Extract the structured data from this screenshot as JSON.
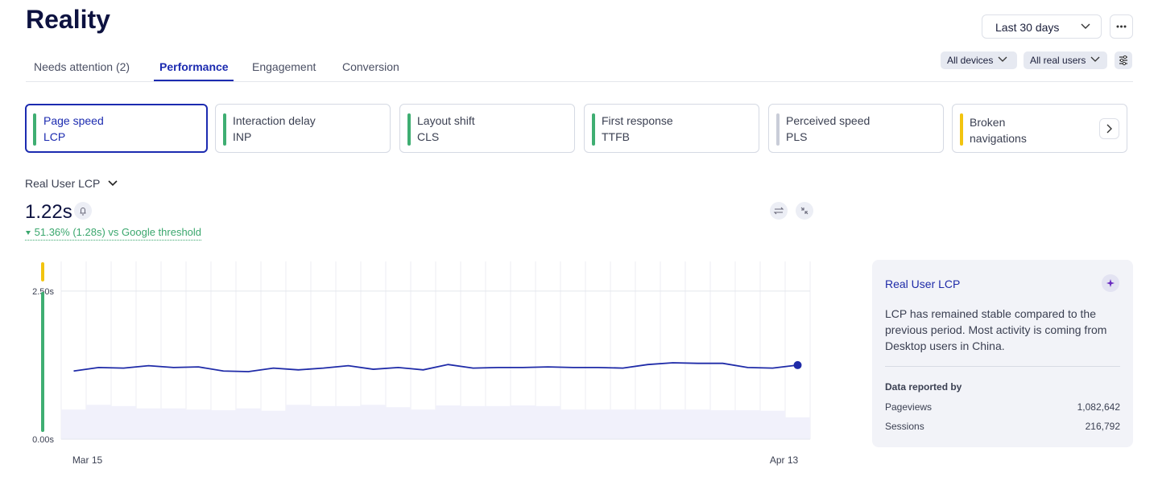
{
  "header": {
    "title": "Reality",
    "range": "Last 30 days",
    "tabs": [
      "Needs attention (2)",
      "Performance",
      "Engagement",
      "Conversion"
    ],
    "filters": [
      "All devices",
      "All real users"
    ]
  },
  "metrics": [
    {
      "name": "Page speed",
      "abbr": "LCP",
      "color": "#3fae72"
    },
    {
      "name": "Interaction delay",
      "abbr": "INP",
      "color": "#3fae72"
    },
    {
      "name": "Layout shift",
      "abbr": "CLS",
      "color": "#3fae72"
    },
    {
      "name": "First response",
      "abbr": "TTFB",
      "color": "#3fae72"
    },
    {
      "name": "Perceived speed",
      "abbr": "PLS",
      "color": "#c9cdd8"
    },
    {
      "name": "Broken navigations",
      "color": "#f2c40f"
    }
  ],
  "summary": {
    "label": "Real User LCP",
    "value": "1.22s",
    "delta": "51.36% (1.28s) vs Google threshold"
  },
  "chart_data": {
    "type": "line",
    "categories": [
      "Mar 15",
      null,
      null,
      null,
      null,
      null,
      null,
      null,
      null,
      null,
      null,
      null,
      null,
      null,
      null,
      null,
      null,
      null,
      null,
      null,
      null,
      null,
      null,
      null,
      null,
      null,
      null,
      null,
      null,
      "Apr 13"
    ],
    "series": [
      {
        "color": "#1f2ba8",
        "values": [
          1.15,
          1.21,
          1.2,
          1.24,
          1.21,
          1.22,
          1.15,
          1.14,
          1.2,
          1.17,
          1.2,
          1.24,
          1.18,
          1.21,
          1.17,
          1.26,
          1.2,
          1.21,
          1.21,
          1.22,
          1.21,
          1.21,
          1.2,
          1.26,
          1.29,
          1.28,
          1.28,
          1.21,
          1.2,
          1.25
        ]
      }
    ],
    "volume": {
      "color": "#f1f1fb",
      "values": [
        0.5,
        0.58,
        0.56,
        0.52,
        0.52,
        0.5,
        0.49,
        0.52,
        0.48,
        0.58,
        0.56,
        0.56,
        0.58,
        0.54,
        0.5,
        0.57,
        0.56,
        0.56,
        0.57,
        0.56,
        0.5,
        0.5,
        0.5,
        0.5,
        0.5,
        0.5,
        0.49,
        0.49,
        0.48,
        0.37
      ]
    },
    "ylim": [
      0,
      3
    ],
    "yticks": [
      {
        "value": 0,
        "label": "0.00s"
      },
      {
        "value": 2.5,
        "label": "2.50s"
      }
    ],
    "grid": true
  },
  "panel": {
    "title": "Real User LCP",
    "text": "LCP has remained stable compared to the previous period. Most activity is coming from Desktop users in China.",
    "heading": "Data reported by",
    "rows": [
      [
        "Pageviews",
        "1,082,642"
      ],
      [
        "Sessions",
        "216,792"
      ]
    ]
  }
}
